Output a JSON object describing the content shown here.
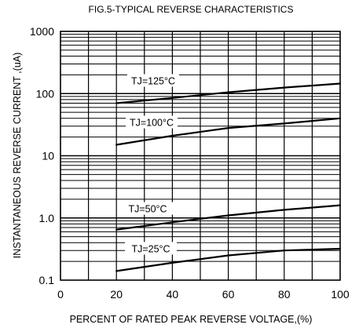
{
  "chart_data": {
    "type": "line",
    "title": "FIG.5-TYPICAL REVERSE CHARACTERISTICS",
    "xlabel": "PERCENT OF RATED PEAK REVERSE VOLTAGE,(%)",
    "ylabel": "INSTANTANEOUS REVERSE CURRENT ,(uA)",
    "xlim": [
      0,
      100
    ],
    "ylim": [
      0.1,
      1000
    ],
    "y_scale": "log",
    "grid": true,
    "x_ticks": [
      "0",
      "20",
      "40",
      "60",
      "80",
      "100"
    ],
    "y_ticks": [
      "0.1",
      "1.0",
      "10",
      "100",
      "1000"
    ],
    "series": [
      {
        "name": "TJ=125°C",
        "x": [
          20,
          40,
          60,
          80,
          100
        ],
        "y": [
          70,
          85,
          105,
          125,
          145
        ]
      },
      {
        "name": "TJ=100°C",
        "x": [
          20,
          40,
          60,
          80,
          100
        ],
        "y": [
          15,
          21,
          28,
          33,
          40
        ]
      },
      {
        "name": "TJ=50°C",
        "x": [
          20,
          40,
          60,
          80,
          100
        ],
        "y": [
          0.65,
          0.85,
          1.1,
          1.35,
          1.6
        ]
      },
      {
        "name": "TJ=25°C",
        "x": [
          20,
          40,
          60,
          80,
          100
        ],
        "y": [
          0.14,
          0.19,
          0.25,
          0.3,
          0.32
        ]
      }
    ]
  }
}
